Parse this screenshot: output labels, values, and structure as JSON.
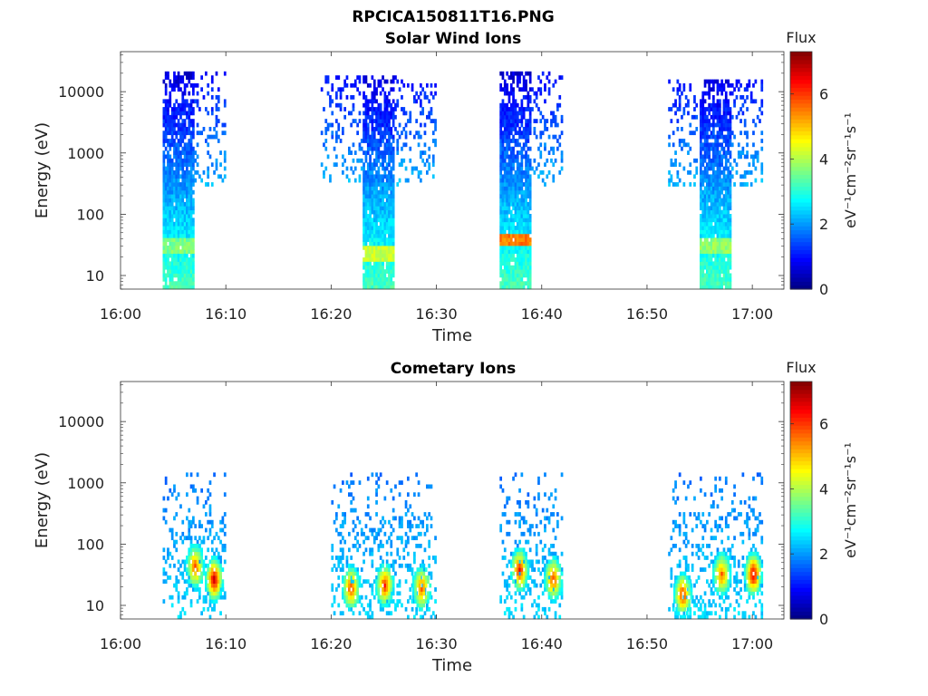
{
  "figure": {
    "title": "RPCICA150811T16.PNG"
  },
  "chart_data": [
    {
      "type": "heatmap",
      "title": "Solar Wind Ions",
      "xlabel": "Time",
      "ylabel": "Energy (eV)",
      "yscale": "log",
      "ylim": [
        6,
        45000
      ],
      "x_ticks": [
        "16:00",
        "16:10",
        "16:20",
        "16:30",
        "16:40",
        "16:50",
        "17:00"
      ],
      "y_ticks": [
        "10",
        "100",
        "1000",
        "10000"
      ],
      "colorbar": {
        "label": "Flux",
        "unit": "eV⁻¹cm⁻²sr⁻¹s⁻¹",
        "range": [
          0,
          7.3
        ],
        "ticks": [
          "0",
          "2",
          "4",
          "6"
        ],
        "colormap": "jet"
      },
      "bursts": [
        {
          "core_start": "16:04",
          "core_end": "16:07",
          "halo_end": "16:10",
          "e_high": 20000,
          "e_low": 6,
          "flux_peak": 3.6,
          "peak_energy": 30
        },
        {
          "core_start": "16:23",
          "core_end": "16:26",
          "halo_start": "16:19",
          "halo_end": "16:30",
          "e_high": 18000,
          "e_low": 6,
          "flux_peak": 4.2,
          "peak_energy": 22
        },
        {
          "core_start": "16:36",
          "core_end": "16:39",
          "halo_end": "16:42",
          "e_high": 20000,
          "e_low": 6,
          "flux_peak": 5.5,
          "peak_energy": 35
        },
        {
          "core_start": "16:55",
          "core_end": "16:58",
          "halo_start": "16:52",
          "halo_end": "17:01",
          "e_high": 15000,
          "e_low": 6,
          "flux_peak": 3.8,
          "peak_energy": 30
        }
      ]
    },
    {
      "type": "heatmap",
      "title": "Cometary Ions",
      "xlabel": "Time",
      "ylabel": "Energy (eV)",
      "yscale": "log",
      "ylim": [
        6,
        45000
      ],
      "x_ticks": [
        "16:00",
        "16:10",
        "16:20",
        "16:30",
        "16:40",
        "16:50",
        "17:00"
      ],
      "y_ticks": [
        "10",
        "100",
        "1000",
        "10000"
      ],
      "colorbar": {
        "label": "Flux",
        "unit": "eV⁻¹cm⁻²sr⁻¹s⁻¹",
        "range": [
          0,
          7.3
        ],
        "ticks": [
          "0",
          "2",
          "4",
          "6"
        ],
        "colormap": "jet"
      },
      "hotspots": [
        {
          "time": "16:08.8",
          "energy": 25,
          "flux": 7.0
        },
        {
          "time": "16:07",
          "energy": 40,
          "flux": 6.0
        },
        {
          "time": "16:21.8",
          "energy": 18,
          "flux": 6.2
        },
        {
          "time": "16:25",
          "energy": 20,
          "flux": 6.3
        },
        {
          "time": "16:28.5",
          "energy": 18,
          "flux": 6.0
        },
        {
          "time": "16:37.8",
          "energy": 35,
          "flux": 6.5
        },
        {
          "time": "16:41",
          "energy": 25,
          "flux": 6.2
        },
        {
          "time": "16:53.3",
          "energy": 14,
          "flux": 6.3
        },
        {
          "time": "16:57",
          "energy": 30,
          "flux": 5.8
        },
        {
          "time": "17:00",
          "energy": 30,
          "flux": 7.0
        }
      ],
      "halo_ranges": [
        {
          "start": "16:04",
          "end": "16:10"
        },
        {
          "start": "16:20",
          "end": "16:30"
        },
        {
          "start": "16:36",
          "end": "16:42"
        },
        {
          "start": "16:52",
          "end": "17:01"
        }
      ]
    }
  ]
}
